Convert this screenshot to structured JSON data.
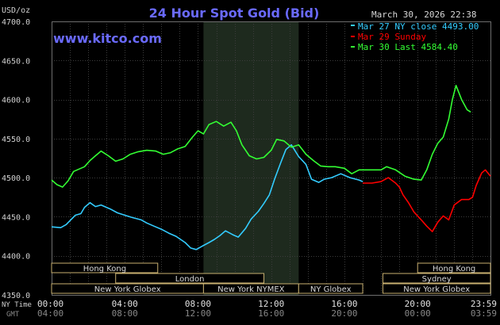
{
  "header": {
    "title": "24 Hour Spot Gold (Bid)",
    "unit_label": "USD/oz",
    "timestamp": "March 30, 2026 22:38",
    "watermark": "www.kitco.com"
  },
  "legend": [
    {
      "text": "Mar 27 NY close 4493.00",
      "color": "#33ccff"
    },
    {
      "text": "Mar 29 Sunday",
      "color": "#ff0000"
    },
    {
      "text": "Mar 30 Last 4584.40",
      "color": "#33ff33"
    }
  ],
  "axis": {
    "row_label_ny": "NY Time",
    "row_label_gmt": "GMT",
    "ny_ticks": [
      "00:00",
      "04:00",
      "08:00",
      "12:00",
      "16:00",
      "20:00",
      "23:59"
    ],
    "gmt_ticks": [
      "04:00",
      "08:00",
      "12:00",
      "16:00",
      "20:00",
      "00:00",
      "03:59"
    ],
    "y_ticks": [
      "4700.0",
      "4650.0",
      "4600.0",
      "4550.0",
      "4500.0",
      "4450.0",
      "4400.0",
      "4350.0"
    ]
  },
  "sessions": [
    {
      "label": "Hong Kong",
      "start": 0,
      "end": 5.8,
      "row": 0
    },
    {
      "label": "London",
      "start": 3.5,
      "end": 11.6,
      "row": 1
    },
    {
      "label": "New York Globex",
      "start": 0,
      "end": 8.3,
      "row": 2
    },
    {
      "label": "New York NYMEX",
      "start": 8.3,
      "end": 13.5,
      "row": 2
    },
    {
      "label": "NY Globex",
      "start": 13.5,
      "end": 17.0,
      "row": 2
    },
    {
      "label": "Hong Kong",
      "start": 20.0,
      "end": 23.98,
      "row": 0
    },
    {
      "label": "Sydney",
      "start": 18.1,
      "end": 23.98,
      "row": 1
    },
    {
      "label": "New York Globex",
      "start": 18.1,
      "end": 23.98,
      "row": 2
    }
  ],
  "chart_data": {
    "type": "line",
    "title": "24 Hour Spot Gold (Bid)",
    "ylabel": "USD/oz",
    "xlabel": "NY Time",
    "x_unit": "hours",
    "xlim": [
      0,
      23.98
    ],
    "ylim": [
      4350,
      4700
    ],
    "grid": true,
    "legend_position": "top-right",
    "highlight_band": [
      8.3,
      13.5
    ],
    "series": [
      {
        "name": "Mar 27 NY close 4493.00",
        "color": "#33ccff",
        "points": [
          [
            0,
            4437
          ],
          [
            0.5,
            4436
          ],
          [
            0.8,
            4440
          ],
          [
            1.0,
            4445
          ],
          [
            1.3,
            4452
          ],
          [
            1.6,
            4454
          ],
          [
            1.8,
            4462
          ],
          [
            2.1,
            4468
          ],
          [
            2.4,
            4463
          ],
          [
            2.7,
            4465
          ],
          [
            3.2,
            4460
          ],
          [
            3.6,
            4455
          ],
          [
            4.0,
            4452
          ],
          [
            4.4,
            4449
          ],
          [
            4.9,
            4446
          ],
          [
            5.2,
            4442
          ],
          [
            5.6,
            4438
          ],
          [
            6.0,
            4434
          ],
          [
            6.4,
            4429
          ],
          [
            6.8,
            4425
          ],
          [
            7.3,
            4417
          ],
          [
            7.6,
            4410
          ],
          [
            7.9,
            4408
          ],
          [
            8.2,
            4412
          ],
          [
            8.6,
            4417
          ],
          [
            8.9,
            4421
          ],
          [
            9.2,
            4426
          ],
          [
            9.5,
            4432
          ],
          [
            9.9,
            4427
          ],
          [
            10.2,
            4424
          ],
          [
            10.6,
            4435
          ],
          [
            10.9,
            4447
          ],
          [
            11.3,
            4457
          ],
          [
            11.6,
            4467
          ],
          [
            11.9,
            4478
          ],
          [
            12.2,
            4499
          ],
          [
            12.5,
            4518
          ],
          [
            12.8,
            4536
          ],
          [
            13.1,
            4542
          ],
          [
            13.5,
            4527
          ],
          [
            13.9,
            4517
          ],
          [
            14.2,
            4498
          ],
          [
            14.6,
            4494
          ],
          [
            14.9,
            4498
          ],
          [
            15.3,
            4500
          ],
          [
            15.8,
            4505
          ],
          [
            16.3,
            4500
          ],
          [
            16.8,
            4497
          ],
          [
            17.0,
            4495
          ]
        ]
      },
      {
        "name": "Mar 29 Sunday",
        "color": "#ff0000",
        "points": [
          [
            17.0,
            4493
          ],
          [
            17.5,
            4493
          ],
          [
            18.0,
            4495
          ],
          [
            18.4,
            4500
          ],
          [
            18.8,
            4493
          ],
          [
            19.0,
            4488
          ],
          [
            19.2,
            4478
          ],
          [
            19.5,
            4468
          ],
          [
            19.8,
            4456
          ],
          [
            20.2,
            4446
          ],
          [
            20.5,
            4438
          ],
          [
            20.8,
            4431
          ],
          [
            21.1,
            4443
          ],
          [
            21.4,
            4451
          ],
          [
            21.7,
            4446
          ],
          [
            22.0,
            4465
          ],
          [
            22.4,
            4472
          ],
          [
            22.8,
            4472
          ],
          [
            23.0,
            4475
          ],
          [
            23.2,
            4490
          ],
          [
            23.5,
            4506
          ],
          [
            23.7,
            4510
          ],
          [
            23.98,
            4502
          ]
        ]
      },
      {
        "name": "Mar 30 Last 4584.40",
        "color": "#33ff33",
        "points": [
          [
            0,
            4497
          ],
          [
            0.3,
            4491
          ],
          [
            0.6,
            4488
          ],
          [
            0.9,
            4496
          ],
          [
            1.2,
            4508
          ],
          [
            1.5,
            4511
          ],
          [
            1.8,
            4514
          ],
          [
            2.1,
            4522
          ],
          [
            2.4,
            4528
          ],
          [
            2.7,
            4534
          ],
          [
            3.1,
            4528
          ],
          [
            3.5,
            4521
          ],
          [
            3.9,
            4524
          ],
          [
            4.3,
            4530
          ],
          [
            4.7,
            4533
          ],
          [
            5.2,
            4535
          ],
          [
            5.7,
            4534
          ],
          [
            6.1,
            4530
          ],
          [
            6.5,
            4532
          ],
          [
            6.9,
            4537
          ],
          [
            7.3,
            4540
          ],
          [
            7.7,
            4552
          ],
          [
            8.0,
            4560
          ],
          [
            8.3,
            4556
          ],
          [
            8.6,
            4568
          ],
          [
            9.0,
            4572
          ],
          [
            9.4,
            4566
          ],
          [
            9.8,
            4571
          ],
          [
            10.1,
            4560
          ],
          [
            10.4,
            4542
          ],
          [
            10.8,
            4528
          ],
          [
            11.2,
            4524
          ],
          [
            11.6,
            4526
          ],
          [
            12.0,
            4535
          ],
          [
            12.3,
            4549
          ],
          [
            12.7,
            4547
          ],
          [
            13.1,
            4539
          ],
          [
            13.5,
            4542
          ],
          [
            13.9,
            4530
          ],
          [
            14.3,
            4522
          ],
          [
            14.7,
            4515
          ],
          [
            15.1,
            4514
          ],
          [
            15.5,
            4514
          ],
          [
            16.0,
            4512
          ],
          [
            16.4,
            4505
          ],
          [
            16.8,
            4510
          ],
          [
            17.0,
            4510
          ],
          [
            17.5,
            4510
          ],
          [
            18.0,
            4510
          ],
          [
            18.3,
            4514
          ],
          [
            18.8,
            4510
          ],
          [
            19.3,
            4502
          ],
          [
            19.8,
            4498
          ],
          [
            20.2,
            4497
          ],
          [
            20.5,
            4510
          ],
          [
            20.8,
            4530
          ],
          [
            21.1,
            4544
          ],
          [
            21.4,
            4552
          ],
          [
            21.7,
            4575
          ],
          [
            21.9,
            4600
          ],
          [
            22.1,
            4618
          ],
          [
            22.4,
            4600
          ],
          [
            22.7,
            4587
          ],
          [
            22.9,
            4584
          ]
        ]
      }
    ]
  }
}
